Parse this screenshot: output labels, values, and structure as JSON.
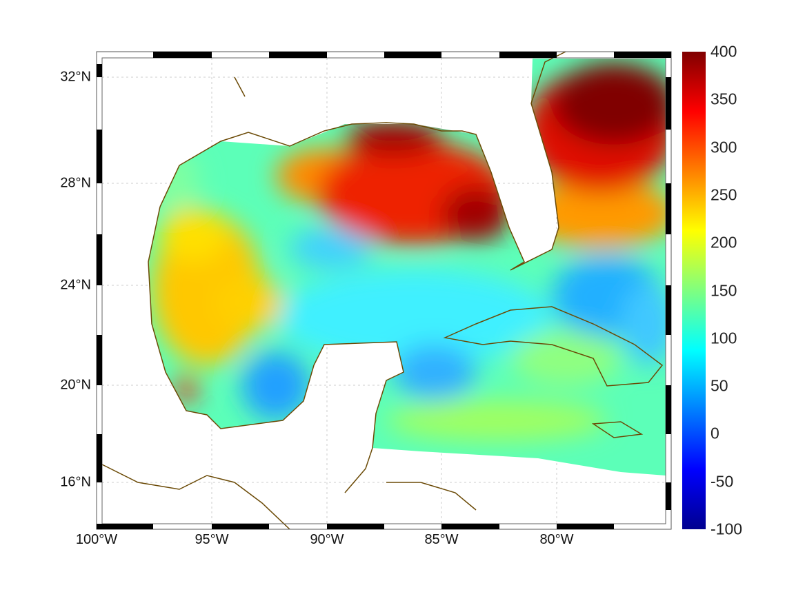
{
  "chart_data": {
    "type": "heatmap",
    "title": "",
    "region": "Gulf of Mexico, Caribbean and western Atlantic",
    "lon_ticks": [
      "100°W",
      "95°W",
      "90°W",
      "85°W",
      "80°W"
    ],
    "lat_ticks": [
      "32°N",
      "28°N",
      "24°N",
      "20°N",
      "16°N"
    ],
    "lon_range": [
      -100,
      -75
    ],
    "lat_range": [
      14,
      33
    ],
    "grid": true,
    "colormap": "jet",
    "colorbar": {
      "ticks": [
        "400",
        "350",
        "300",
        "250",
        "200",
        "150",
        "100",
        "50",
        "0",
        "-50",
        "-100"
      ],
      "range": [
        -100,
        400
      ],
      "placement": "right"
    },
    "coastline_color": "#6b4a06"
  }
}
